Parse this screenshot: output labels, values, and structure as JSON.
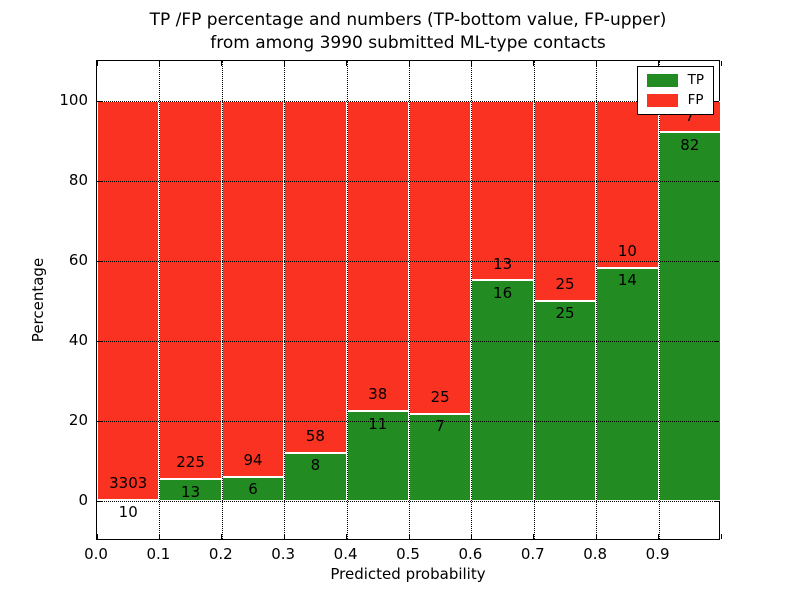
{
  "figure": {
    "title_line1": "TP /FP percentage and numbers (TP-bottom value, FP-upper)",
    "title_line2": "from among 3990 submitted ML-type contacts"
  },
  "axes": {
    "xlabel": "Predicted probability",
    "ylabel": "Percentage",
    "x_tick_labels": [
      "0.0",
      "0.1",
      "0.2",
      "0.3",
      "0.4",
      "0.5",
      "0.6",
      "0.7",
      "0.8",
      "0.9"
    ],
    "y_tick_labels": [
      "0",
      "20",
      "40",
      "60",
      "80",
      "100"
    ],
    "y_tick_values": [
      0,
      20,
      40,
      60,
      80,
      100
    ]
  },
  "legend": {
    "items": [
      {
        "label": "TP",
        "color": "#228b22"
      },
      {
        "label": "FP",
        "color": "#f93222"
      }
    ]
  },
  "chart_data": {
    "type": "bar",
    "variant": "stacked-100-percent",
    "title": "TP /FP percentage and numbers (TP-bottom value, FP-upper) from among 3990 submitted ML-type contacts",
    "xlabel": "Predicted probability",
    "ylabel": "Percentage",
    "xlim": [
      0.0,
      1.0
    ],
    "ylim": [
      -10,
      110
    ],
    "grid": "dotted, both axes, on top of bars",
    "legend_position": "upper right",
    "total_contacts": 3990,
    "bin_edges": [
      0.0,
      0.1,
      0.2,
      0.3,
      0.4,
      0.5,
      0.6,
      0.7,
      0.8,
      0.9,
      1.0
    ],
    "series": [
      {
        "name": "TP",
        "color": "#228b22",
        "counts": [
          10,
          13,
          6,
          8,
          11,
          7,
          16,
          25,
          14,
          82
        ]
      },
      {
        "name": "FP",
        "color": "#f93222",
        "counts": [
          3303,
          225,
          94,
          58,
          38,
          25,
          13,
          25,
          10,
          7
        ]
      }
    ],
    "tp_percent_per_bin": [
      0.3,
      5.46,
      6.0,
      12.12,
      22.45,
      21.88,
      55.17,
      50.0,
      58.33,
      92.13
    ],
    "annotation_note": "TP count printed at top of green segment, FP count printed just above it in red segment"
  },
  "colors": {
    "tp": "#228b22",
    "fp": "#f93222",
    "background": "#ffffff",
    "text": "#000000",
    "grid": "#000000",
    "bar_edge": "#ffffff"
  }
}
